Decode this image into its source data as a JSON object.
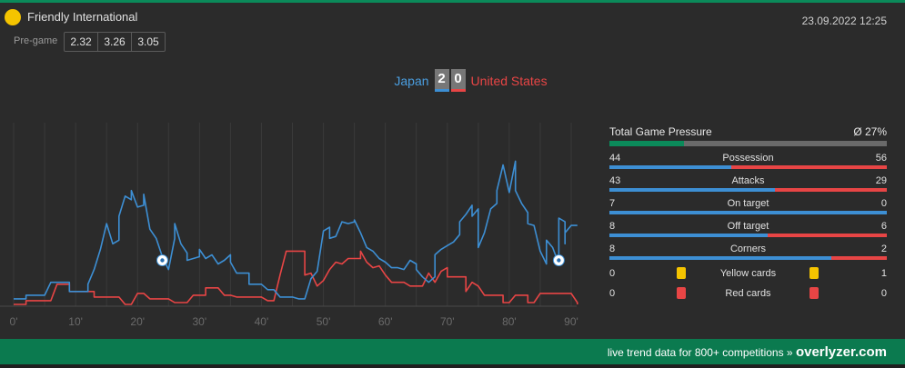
{
  "match": {
    "competition": "Friendly International",
    "datetime": "23.09.2022 12:25",
    "pregame_label": "Pre-game",
    "odds": [
      "2.32",
      "3.26",
      "3.05"
    ],
    "home_team": "Japan",
    "away_team": "United States",
    "home_score": "2",
    "away_score": "0"
  },
  "colors": {
    "home": "#3d8fd4",
    "away": "#e84545",
    "brand": "#0b7a4f",
    "pressure": "#0b8a5a"
  },
  "chart_data": {
    "type": "line",
    "xlabel": "",
    "ylabel": "",
    "xlim": [
      0,
      90
    ],
    "ylim": [
      0,
      100
    ],
    "x_ticks": [
      "0'",
      "10'",
      "20'",
      "30'",
      "40'",
      "50'",
      "60'",
      "70'",
      "80'",
      "90'"
    ],
    "series": [
      {
        "name": "Japan",
        "color": "#3d8fd4",
        "points": [
          [
            0,
            4
          ],
          [
            2,
            4
          ],
          [
            2,
            6
          ],
          [
            5,
            6
          ],
          [
            6,
            13
          ],
          [
            9,
            13
          ],
          [
            9,
            8
          ],
          [
            12,
            8
          ],
          [
            12,
            12
          ],
          [
            13,
            20
          ],
          [
            14,
            31
          ],
          [
            15,
            45
          ],
          [
            16,
            34
          ],
          [
            17,
            36
          ],
          [
            17,
            49
          ],
          [
            18,
            60
          ],
          [
            19,
            58
          ],
          [
            19,
            63
          ],
          [
            20,
            54
          ],
          [
            21,
            55
          ],
          [
            21,
            61
          ],
          [
            22,
            42
          ],
          [
            23,
            37
          ],
          [
            24,
            27
          ],
          [
            25,
            20
          ],
          [
            26,
            37
          ],
          [
            26,
            45
          ],
          [
            27,
            34
          ],
          [
            28,
            29
          ],
          [
            28,
            25
          ],
          [
            30,
            27
          ],
          [
            30,
            31
          ],
          [
            31,
            26
          ],
          [
            32,
            28
          ],
          [
            33,
            23
          ],
          [
            34,
            25
          ],
          [
            35,
            28
          ],
          [
            35,
            24
          ],
          [
            36,
            18
          ],
          [
            38,
            18
          ],
          [
            38,
            12
          ],
          [
            40,
            12
          ],
          [
            41,
            9
          ],
          [
            42,
            9
          ],
          [
            43,
            5
          ],
          [
            45,
            5
          ],
          [
            46,
            4
          ],
          [
            47,
            4
          ],
          [
            48,
            15
          ],
          [
            49,
            19
          ],
          [
            50,
            41
          ],
          [
            51,
            43
          ],
          [
            51,
            37
          ],
          [
            52,
            38
          ],
          [
            53,
            46
          ],
          [
            54,
            45
          ],
          [
            55,
            46
          ],
          [
            55,
            47
          ],
          [
            56,
            40
          ],
          [
            57,
            32
          ],
          [
            58,
            30
          ],
          [
            59,
            26
          ],
          [
            60,
            24
          ],
          [
            61,
            21
          ],
          [
            62,
            21
          ],
          [
            63,
            20
          ],
          [
            64,
            25
          ],
          [
            65,
            23
          ],
          [
            65,
            20
          ],
          [
            66,
            16
          ],
          [
            67,
            13
          ],
          [
            68,
            16
          ],
          [
            68,
            28
          ],
          [
            69,
            31
          ],
          [
            70,
            33
          ],
          [
            71,
            35
          ],
          [
            72,
            39
          ],
          [
            72,
            46
          ],
          [
            73,
            50
          ],
          [
            74,
            55
          ],
          [
            74,
            49
          ],
          [
            75,
            53
          ],
          [
            75,
            32
          ],
          [
            76,
            40
          ],
          [
            77,
            53
          ],
          [
            78,
            56
          ],
          [
            78,
            63
          ],
          [
            79,
            77
          ],
          [
            80,
            62
          ],
          [
            81,
            79
          ],
          [
            81,
            63
          ],
          [
            82,
            56
          ],
          [
            83,
            51
          ],
          [
            83,
            45
          ],
          [
            84,
            44
          ],
          [
            85,
            30
          ],
          [
            86,
            23
          ],
          [
            86,
            36
          ],
          [
            87,
            32
          ],
          [
            88,
            23
          ],
          [
            88,
            48
          ],
          [
            89,
            46
          ],
          [
            89,
            34
          ],
          [
            89,
            40
          ],
          [
            90,
            44
          ],
          [
            91,
            44
          ]
        ]
      },
      {
        "name": "United States",
        "color": "#e84545",
        "points": [
          [
            0,
            1
          ],
          [
            2,
            1
          ],
          [
            2,
            3
          ],
          [
            6,
            3
          ],
          [
            7,
            12
          ],
          [
            9,
            12
          ],
          [
            9,
            8
          ],
          [
            13,
            8
          ],
          [
            13,
            5
          ],
          [
            17,
            5
          ],
          [
            18,
            1
          ],
          [
            19,
            1
          ],
          [
            20,
            7
          ],
          [
            21,
            7
          ],
          [
            22,
            4
          ],
          [
            25,
            4
          ],
          [
            26,
            2
          ],
          [
            28,
            2
          ],
          [
            29,
            6
          ],
          [
            31,
            6
          ],
          [
            31,
            10
          ],
          [
            33,
            10
          ],
          [
            34,
            6
          ],
          [
            35,
            6
          ],
          [
            36,
            5
          ],
          [
            40,
            5
          ],
          [
            41,
            3
          ],
          [
            42,
            3
          ],
          [
            43,
            17
          ],
          [
            44,
            30
          ],
          [
            47,
            30
          ],
          [
            47,
            17
          ],
          [
            48,
            18
          ],
          [
            49,
            11
          ],
          [
            50,
            14
          ],
          [
            51,
            20
          ],
          [
            52,
            24
          ],
          [
            53,
            23
          ],
          [
            54,
            26
          ],
          [
            56,
            26
          ],
          [
            56,
            30
          ],
          [
            57,
            24
          ],
          [
            58,
            21
          ],
          [
            59,
            22
          ],
          [
            60,
            17
          ],
          [
            61,
            13
          ],
          [
            63,
            13
          ],
          [
            64,
            11
          ],
          [
            66,
            11
          ],
          [
            67,
            18
          ],
          [
            68,
            13
          ],
          [
            69,
            19
          ],
          [
            70,
            21
          ],
          [
            70,
            16
          ],
          [
            73,
            16
          ],
          [
            73,
            8
          ],
          [
            74,
            13
          ],
          [
            75,
            11
          ],
          [
            76,
            6
          ],
          [
            79,
            6
          ],
          [
            79,
            2
          ],
          [
            80,
            2
          ],
          [
            81,
            6
          ],
          [
            83,
            6
          ],
          [
            83,
            2
          ],
          [
            84,
            2
          ],
          [
            85,
            7
          ],
          [
            90,
            7
          ],
          [
            91,
            2
          ],
          [
            91,
            1
          ]
        ]
      }
    ],
    "goals": [
      {
        "team": "Japan",
        "minute": 24,
        "y": 25
      },
      {
        "team": "Japan",
        "minute": 88,
        "y": 25
      }
    ]
  },
  "pressure": {
    "label": "Total Game Pressure",
    "value": "Ø 27%",
    "fraction": 0.27
  },
  "stats": [
    {
      "label": "Possession",
      "home": "44",
      "away": "56"
    },
    {
      "label": "Attacks",
      "home": "43",
      "away": "29"
    },
    {
      "label": "On target",
      "home": "7",
      "away": "0"
    },
    {
      "label": "Off target",
      "home": "8",
      "away": "6"
    },
    {
      "label": "Corners",
      "home": "8",
      "away": "2"
    }
  ],
  "cards": [
    {
      "label": "Yellow cards",
      "home": "0",
      "away": "1",
      "color": "#f5c400"
    },
    {
      "label": "Red cards",
      "home": "0",
      "away": "0",
      "color": "#e84545"
    }
  ],
  "footer": {
    "text": "live trend data for 800+ competitions » ",
    "brand": "overlyzer.com"
  }
}
